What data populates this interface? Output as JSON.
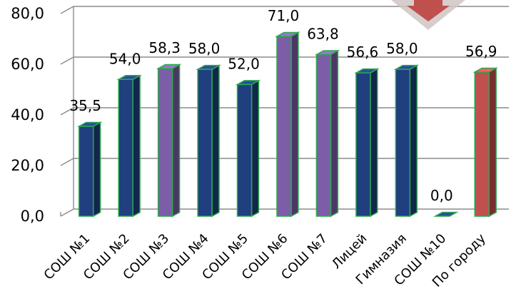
{
  "chart_data": {
    "type": "bar",
    "categories": [
      "СОШ №1",
      "СОШ №2",
      "СОШ №3",
      "СОШ №4",
      "СОШ №5",
      "СОШ №6",
      "СОШ №7",
      "Лицей",
      "Гимназия",
      "СОШ №10",
      "По городу"
    ],
    "values": [
      35.5,
      54.0,
      58.3,
      58.0,
      52.0,
      71.0,
      63.8,
      56.6,
      58.0,
      0.0,
      56.9
    ],
    "value_labels": [
      "35,5",
      "54,0",
      "58,3",
      "58,0",
      "52,0",
      "71,0",
      "63,8",
      "56,6",
      "58,0",
      "0,0",
      "56,9"
    ],
    "y_ticks": [
      0,
      20,
      40,
      60,
      80
    ],
    "y_tick_labels": [
      "0,0",
      "20,0",
      "40,0",
      "60,0",
      "80,0"
    ],
    "ylim": [
      0,
      80
    ],
    "grid": true,
    "title": "",
    "xlabel": "",
    "ylabel": "",
    "bar_colors": [
      "#1f3f7f",
      "#1f3f7f",
      "#7b5ea7",
      "#1f3f7f",
      "#1f3f7f",
      "#7b5ea7",
      "#7b5ea7",
      "#1f3f7f",
      "#1f3f7f",
      "#1f3f7f",
      "#c0504d"
    ],
    "bar_border_color": "#2ea84e"
  },
  "decoration": {
    "icon": "down-arrow-icon",
    "color": "#c0504d"
  }
}
